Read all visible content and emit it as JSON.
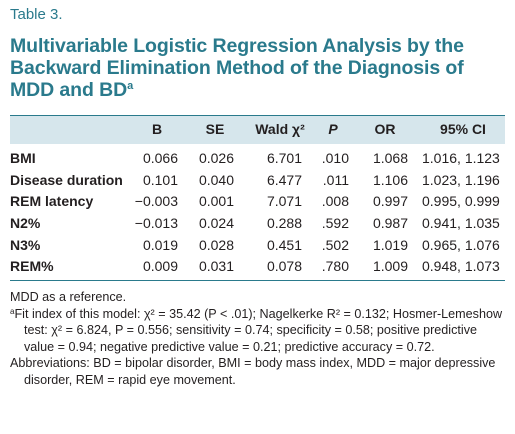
{
  "table": {
    "label": "Table 3.",
    "title": "Multivariable Logistic Regression Analysis by the Backward Elimination Method of the Diagnosis of MDD and BD",
    "title_superscript": "a",
    "columns": [
      "B",
      "SE",
      "Wald χ²",
      "P",
      "OR",
      "95% CI"
    ],
    "rows": [
      {
        "label": "BMI",
        "B": "0.066",
        "SE": "0.026",
        "wald": "6.701",
        "P": ".010",
        "OR": "1.068",
        "CI": "1.016, 1.123"
      },
      {
        "label": "Disease duration",
        "B": "0.101",
        "SE": "0.040",
        "wald": "6.477",
        "P": ".011",
        "OR": "1.106",
        "CI": "1.023, 1.196"
      },
      {
        "label": "REM latency",
        "B": "−0.003",
        "SE": "0.001",
        "wald": "7.071",
        "P": ".008",
        "OR": "0.997",
        "CI": "0.995, 0.999"
      },
      {
        "label": "N2%",
        "B": "−0.013",
        "SE": "0.024",
        "wald": "0.288",
        "P": ".592",
        "OR": "0.987",
        "CI": "0.941, 1.035"
      },
      {
        "label": "N3%",
        "B": "0.019",
        "SE": "0.028",
        "wald": "0.451",
        "P": ".502",
        "OR": "1.019",
        "CI": "0.965, 1.076"
      },
      {
        "label": "REM%",
        "B": "0.009",
        "SE": "0.031",
        "wald": "0.078",
        "P": ".780",
        "OR": "1.009",
        "CI": "0.948, 1.073"
      }
    ]
  },
  "footnotes": {
    "reference": "MDD as a reference.",
    "fit_marker": "a",
    "fit_index": "Fit index of this model: χ² = 35.42 (P < .01); Nagelkerke R² = 0.132; Hosmer-Lemeshow test: χ² = 6.824, P = 0.556; sensitivity = 0.74; specificity = 0.58; positive predictive value = 0.94; negative predictive value = 0.21; predictive accuracy = 0.72.",
    "abbreviations": "Abbreviations: BD = bipolar disorder, BMI = body mass index, MDD = major depressive disorder, REM = rapid eye movement."
  },
  "colors": {
    "accent": "#2a7a8c",
    "header_band": "#d6e6ec",
    "text": "#231f20"
  }
}
